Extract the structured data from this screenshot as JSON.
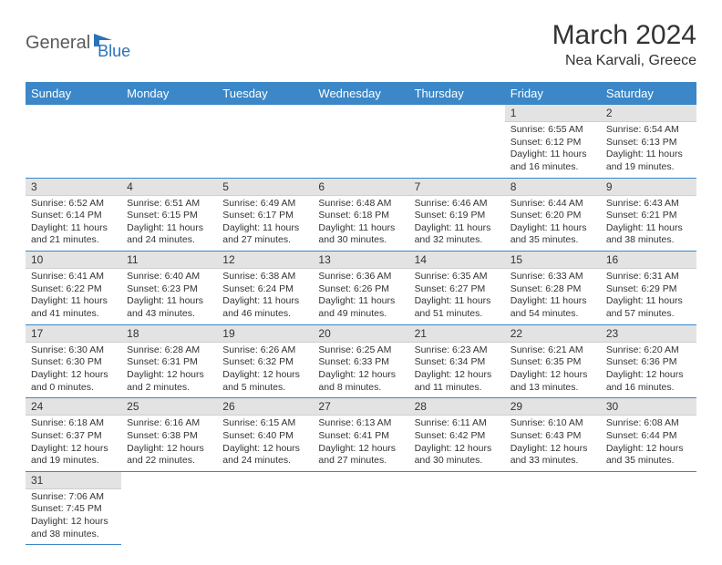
{
  "logo": {
    "word1": "General",
    "word2": "Blue"
  },
  "title": "March 2024",
  "subtitle": "Nea Karvali, Greece",
  "colors": {
    "header_bg": "#3b87c8",
    "header_text": "#ffffff",
    "daynum_bg": "#e3e3e3",
    "border": "#3b87c8",
    "text": "#333333",
    "logo_gray": "#5a5a5a",
    "logo_blue": "#2a73b8"
  },
  "weekdays": [
    "Sunday",
    "Monday",
    "Tuesday",
    "Wednesday",
    "Thursday",
    "Friday",
    "Saturday"
  ],
  "labels": {
    "sunrise": "Sunrise:",
    "sunset": "Sunset:",
    "daylight": "Daylight:"
  },
  "weeks": [
    [
      null,
      null,
      null,
      null,
      null,
      {
        "n": "1",
        "sr": "6:55 AM",
        "ss": "6:12 PM",
        "dl": "11 hours and 16 minutes."
      },
      {
        "n": "2",
        "sr": "6:54 AM",
        "ss": "6:13 PM",
        "dl": "11 hours and 19 minutes."
      }
    ],
    [
      {
        "n": "3",
        "sr": "6:52 AM",
        "ss": "6:14 PM",
        "dl": "11 hours and 21 minutes."
      },
      {
        "n": "4",
        "sr": "6:51 AM",
        "ss": "6:15 PM",
        "dl": "11 hours and 24 minutes."
      },
      {
        "n": "5",
        "sr": "6:49 AM",
        "ss": "6:17 PM",
        "dl": "11 hours and 27 minutes."
      },
      {
        "n": "6",
        "sr": "6:48 AM",
        "ss": "6:18 PM",
        "dl": "11 hours and 30 minutes."
      },
      {
        "n": "7",
        "sr": "6:46 AM",
        "ss": "6:19 PM",
        "dl": "11 hours and 32 minutes."
      },
      {
        "n": "8",
        "sr": "6:44 AM",
        "ss": "6:20 PM",
        "dl": "11 hours and 35 minutes."
      },
      {
        "n": "9",
        "sr": "6:43 AM",
        "ss": "6:21 PM",
        "dl": "11 hours and 38 minutes."
      }
    ],
    [
      {
        "n": "10",
        "sr": "6:41 AM",
        "ss": "6:22 PM",
        "dl": "11 hours and 41 minutes."
      },
      {
        "n": "11",
        "sr": "6:40 AM",
        "ss": "6:23 PM",
        "dl": "11 hours and 43 minutes."
      },
      {
        "n": "12",
        "sr": "6:38 AM",
        "ss": "6:24 PM",
        "dl": "11 hours and 46 minutes."
      },
      {
        "n": "13",
        "sr": "6:36 AM",
        "ss": "6:26 PM",
        "dl": "11 hours and 49 minutes."
      },
      {
        "n": "14",
        "sr": "6:35 AM",
        "ss": "6:27 PM",
        "dl": "11 hours and 51 minutes."
      },
      {
        "n": "15",
        "sr": "6:33 AM",
        "ss": "6:28 PM",
        "dl": "11 hours and 54 minutes."
      },
      {
        "n": "16",
        "sr": "6:31 AM",
        "ss": "6:29 PM",
        "dl": "11 hours and 57 minutes."
      }
    ],
    [
      {
        "n": "17",
        "sr": "6:30 AM",
        "ss": "6:30 PM",
        "dl": "12 hours and 0 minutes."
      },
      {
        "n": "18",
        "sr": "6:28 AM",
        "ss": "6:31 PM",
        "dl": "12 hours and 2 minutes."
      },
      {
        "n": "19",
        "sr": "6:26 AM",
        "ss": "6:32 PM",
        "dl": "12 hours and 5 minutes."
      },
      {
        "n": "20",
        "sr": "6:25 AM",
        "ss": "6:33 PM",
        "dl": "12 hours and 8 minutes."
      },
      {
        "n": "21",
        "sr": "6:23 AM",
        "ss": "6:34 PM",
        "dl": "12 hours and 11 minutes."
      },
      {
        "n": "22",
        "sr": "6:21 AM",
        "ss": "6:35 PM",
        "dl": "12 hours and 13 minutes."
      },
      {
        "n": "23",
        "sr": "6:20 AM",
        "ss": "6:36 PM",
        "dl": "12 hours and 16 minutes."
      }
    ],
    [
      {
        "n": "24",
        "sr": "6:18 AM",
        "ss": "6:37 PM",
        "dl": "12 hours and 19 minutes."
      },
      {
        "n": "25",
        "sr": "6:16 AM",
        "ss": "6:38 PM",
        "dl": "12 hours and 22 minutes."
      },
      {
        "n": "26",
        "sr": "6:15 AM",
        "ss": "6:40 PM",
        "dl": "12 hours and 24 minutes."
      },
      {
        "n": "27",
        "sr": "6:13 AM",
        "ss": "6:41 PM",
        "dl": "12 hours and 27 minutes."
      },
      {
        "n": "28",
        "sr": "6:11 AM",
        "ss": "6:42 PM",
        "dl": "12 hours and 30 minutes."
      },
      {
        "n": "29",
        "sr": "6:10 AM",
        "ss": "6:43 PM",
        "dl": "12 hours and 33 minutes."
      },
      {
        "n": "30",
        "sr": "6:08 AM",
        "ss": "6:44 PM",
        "dl": "12 hours and 35 minutes."
      }
    ],
    [
      {
        "n": "31",
        "sr": "7:06 AM",
        "ss": "7:45 PM",
        "dl": "12 hours and 38 minutes."
      },
      null,
      null,
      null,
      null,
      null,
      null
    ]
  ]
}
